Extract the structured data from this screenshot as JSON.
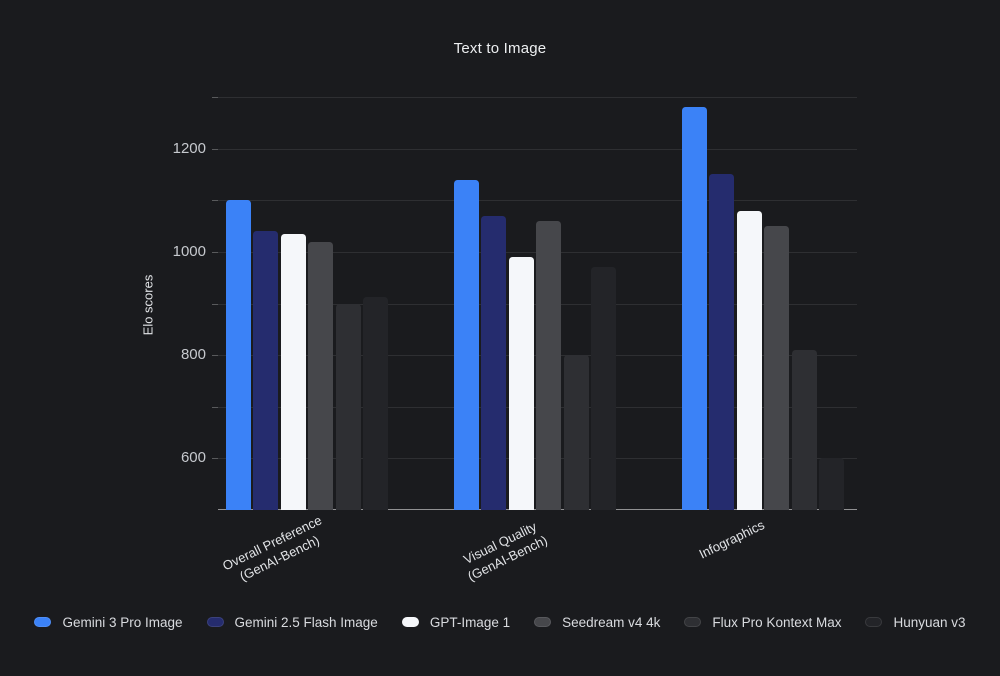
{
  "page": {
    "background": "#1A1B1E"
  },
  "chart_data": {
    "type": "bar",
    "title": "Text to Image",
    "xlabel": "",
    "ylabel": "Elo scores",
    "ylim": [
      500,
      1300
    ],
    "grid": true,
    "grid_step": 100,
    "yticks_labeled": [
      600,
      800,
      1000,
      1200
    ],
    "legend_position": "bottom",
    "categories": [
      {
        "label": "Overall Preference (GenAI-Bench)",
        "lines": [
          "Overall Preference",
          "(GenAI-Bench)"
        ]
      },
      {
        "label": "Visual Quality (GenAI-Bench)",
        "lines": [
          "Visual Quality",
          "(GenAI-Bench)"
        ]
      },
      {
        "label": "Infographics",
        "lines": [
          "Infographics"
        ]
      }
    ],
    "series": [
      {
        "name": "Gemini 3 Pro Image",
        "color": "#3B82F7",
        "values": [
          1100,
          1140,
          1280
        ]
      },
      {
        "name": "Gemini 2.5 Flash Image",
        "color": "#252C6E",
        "values": [
          1040,
          1070,
          1150
        ]
      },
      {
        "name": "GPT-Image 1",
        "color": "#F5F7FA",
        "values": [
          1035,
          990,
          1080
        ]
      },
      {
        "name": "Seedream v4 4k",
        "color": "#46474B",
        "values": [
          1020,
          1060,
          1050
        ]
      },
      {
        "name": "Flux Pro Kontext Max",
        "color": "#2E2F33",
        "values": [
          900,
          800,
          810
        ]
      },
      {
        "name": "Hunyuan v3",
        "color": "#232428",
        "values": [
          912,
          970,
          600
        ]
      }
    ],
    "colors": {
      "gridline": "rgba(255,255,255,0.09)",
      "axis_line": "rgba(255,255,255,0.52)",
      "tick_text": "#C6C9CE",
      "label_text": "#E2E4E7"
    }
  }
}
